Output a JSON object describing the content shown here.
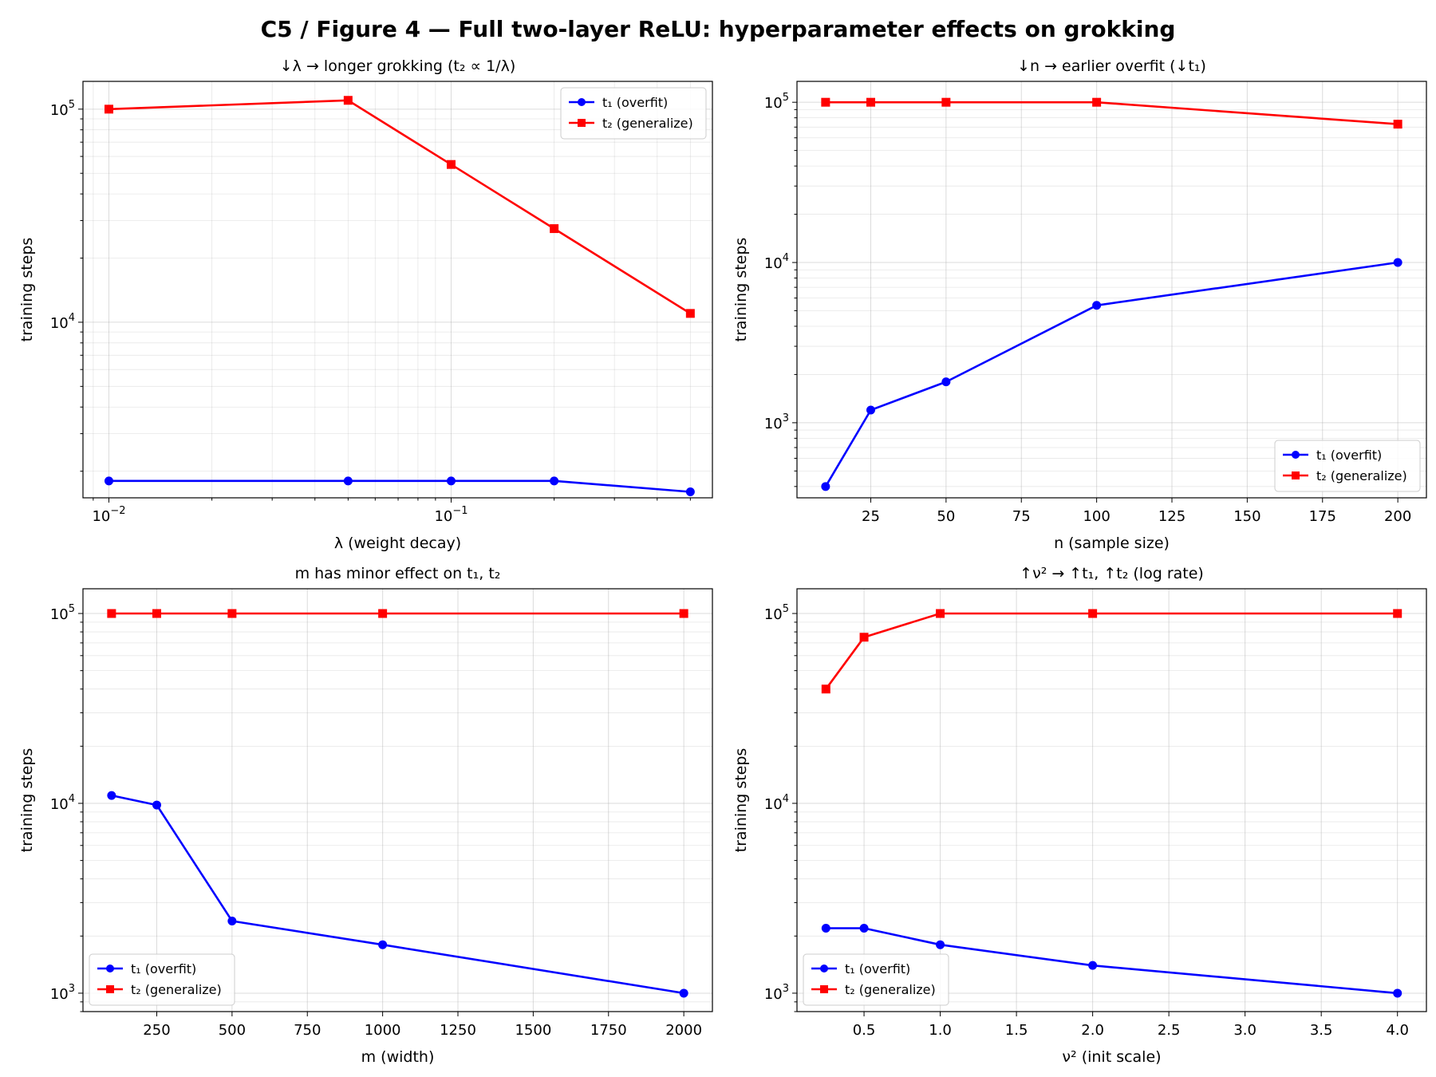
{
  "figure": {
    "suptitle": "C5 / Figure 4 — Full two-layer ReLU: hyperparameter effects on grokking"
  },
  "chart_data": [
    {
      "type": "line",
      "title": "↓λ → longer grokking (t₂ ∝ 1/λ)",
      "xlabel": "λ (weight decay)",
      "ylabel": "training steps",
      "xscale": "log",
      "yscale": "log",
      "xlim": [
        0.0084,
        0.58
      ],
      "ylim": [
        1500,
        135000
      ],
      "xticks": [
        0.01,
        0.1
      ],
      "xtick_labels": [
        [
          "10",
          "−2"
        ],
        [
          "10",
          "−1"
        ]
      ],
      "yticks": [
        10000,
        100000
      ],
      "ytick_labels": [
        [
          "10",
          "4"
        ],
        [
          "10",
          "5"
        ]
      ],
      "grid": true,
      "legend_position": "top-right",
      "series": [
        {
          "name": "t₁ (overfit)",
          "color": "#0000ff",
          "marker": "circle",
          "x": [
            0.01,
            0.05,
            0.1,
            0.2,
            0.5
          ],
          "y": [
            1800,
            1800,
            1800,
            1800,
            1600
          ]
        },
        {
          "name": "t₂ (generalize)",
          "color": "#ff0000",
          "marker": "square",
          "x": [
            0.01,
            0.05,
            0.1,
            0.2,
            0.5
          ],
          "y": [
            100000,
            110000,
            55000,
            27500,
            11000
          ]
        }
      ]
    },
    {
      "type": "line",
      "title": "↓n → earlier overfit (↓t₁)",
      "xlabel": "n (sample size)",
      "ylabel": "training steps",
      "xscale": "linear",
      "yscale": "log",
      "xlim": [
        0.5,
        209.5
      ],
      "ylim": [
        340,
        135000
      ],
      "xticks": [
        25,
        50,
        75,
        100,
        125,
        150,
        175,
        200
      ],
      "xtick_labels": [
        [
          "25"
        ],
        [
          "50"
        ],
        [
          "75"
        ],
        [
          "100"
        ],
        [
          "125"
        ],
        [
          "150"
        ],
        [
          "175"
        ],
        [
          "200"
        ]
      ],
      "yticks": [
        1000,
        10000,
        100000
      ],
      "ytick_labels": [
        [
          "10",
          "3"
        ],
        [
          "10",
          "4"
        ],
        [
          "10",
          "5"
        ]
      ],
      "grid": true,
      "legend_position": "bottom-right",
      "series": [
        {
          "name": "t₁ (overfit)",
          "color": "#0000ff",
          "marker": "circle",
          "x": [
            10,
            25,
            50,
            100,
            200
          ],
          "y": [
            400,
            1200,
            1800,
            5400,
            10000
          ]
        },
        {
          "name": "t₂ (generalize)",
          "color": "#ff0000",
          "marker": "square",
          "x": [
            10,
            25,
            50,
            100,
            200
          ],
          "y": [
            100000,
            100000,
            100000,
            100000,
            73000
          ]
        }
      ]
    },
    {
      "type": "line",
      "title": "m has minor effect on t₁, t₂",
      "xlabel": "m (width)",
      "ylabel": "training steps",
      "xscale": "linear",
      "yscale": "log",
      "xlim": [
        5,
        2095
      ],
      "ylim": [
        800,
        135000
      ],
      "xticks": [
        250,
        500,
        750,
        1000,
        1250,
        1500,
        1750,
        2000
      ],
      "xtick_labels": [
        [
          "250"
        ],
        [
          "500"
        ],
        [
          "750"
        ],
        [
          "1000"
        ],
        [
          "1250"
        ],
        [
          "1500"
        ],
        [
          "1750"
        ],
        [
          "2000"
        ]
      ],
      "yticks": [
        1000,
        10000,
        100000
      ],
      "ytick_labels": [
        [
          "10",
          "3"
        ],
        [
          "10",
          "4"
        ],
        [
          "10",
          "5"
        ]
      ],
      "grid": true,
      "legend_position": "bottom-left",
      "series": [
        {
          "name": "t₁ (overfit)",
          "color": "#0000ff",
          "marker": "circle",
          "x": [
            100,
            250,
            500,
            1000,
            2000
          ],
          "y": [
            11000,
            9800,
            2400,
            1800,
            1000
          ]
        },
        {
          "name": "t₂ (generalize)",
          "color": "#ff0000",
          "marker": "square",
          "x": [
            100,
            250,
            500,
            1000,
            2000
          ],
          "y": [
            100000,
            100000,
            100000,
            100000,
            100000
          ]
        }
      ]
    },
    {
      "type": "line",
      "title": "↑ν² → ↑t₁, ↑t₂ (log rate)",
      "xlabel": "ν² (init scale)",
      "ylabel": "training steps",
      "xscale": "linear",
      "yscale": "log",
      "xlim": [
        0.06,
        4.19
      ],
      "ylim": [
        800,
        135000
      ],
      "xticks": [
        0.5,
        1.0,
        1.5,
        2.0,
        2.5,
        3.0,
        3.5,
        4.0
      ],
      "xtick_labels": [
        [
          "0.5"
        ],
        [
          "1.0"
        ],
        [
          "1.5"
        ],
        [
          "2.0"
        ],
        [
          "2.5"
        ],
        [
          "3.0"
        ],
        [
          "3.5"
        ],
        [
          "4.0"
        ]
      ],
      "yticks": [
        1000,
        10000,
        100000
      ],
      "ytick_labels": [
        [
          "10",
          "3"
        ],
        [
          "10",
          "4"
        ],
        [
          "10",
          "5"
        ]
      ],
      "grid": true,
      "legend_position": "bottom-left",
      "series": [
        {
          "name": "t₁ (overfit)",
          "color": "#0000ff",
          "marker": "circle",
          "x": [
            0.25,
            0.5,
            1.0,
            2.0,
            4.0
          ],
          "y": [
            2200,
            2200,
            1800,
            1400,
            1000
          ]
        },
        {
          "name": "t₂ (generalize)",
          "color": "#ff0000",
          "marker": "square",
          "x": [
            0.25,
            0.5,
            1.0,
            2.0,
            4.0
          ],
          "y": [
            40000,
            75000,
            100000,
            100000,
            100000
          ]
        }
      ]
    }
  ]
}
